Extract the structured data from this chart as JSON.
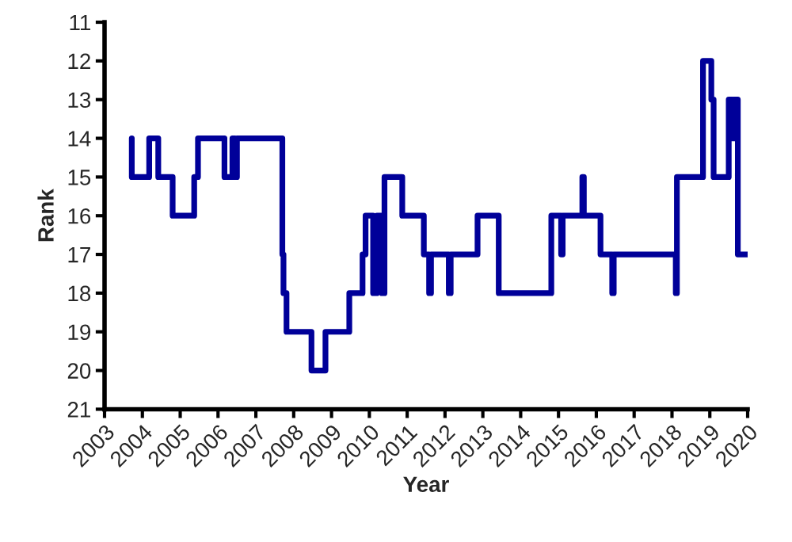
{
  "chart_data": {
    "type": "line",
    "xlabel": "Year",
    "ylabel": "Rank",
    "x": [
      2003.72,
      2003.72,
      2004.18,
      2004.18,
      2004.42,
      2004.42,
      2004.8,
      2004.8,
      2005.37,
      2005.37,
      2005.47,
      2005.47,
      2006.17,
      2006.17,
      2006.38,
      2006.38,
      2006.45,
      2006.45,
      2006.5,
      2006.5,
      2007.7,
      2007.7,
      2007.73,
      2007.73,
      2007.81,
      2007.81,
      2008.47,
      2008.47,
      2008.84,
      2008.84,
      2009.47,
      2009.47,
      2009.82,
      2009.82,
      2009.9,
      2009.9,
      2010.1,
      2010.1,
      2010.2,
      2010.2,
      2010.33,
      2010.33,
      2010.4,
      2010.4,
      2010.87,
      2010.87,
      2011.44,
      2011.44,
      2011.58,
      2011.58,
      2011.63,
      2011.63,
      2012.1,
      2012.1,
      2012.15,
      2012.15,
      2012.86,
      2012.86,
      2013.42,
      2013.42,
      2014.81,
      2014.81,
      2015.07,
      2015.07,
      2015.11,
      2015.11,
      2015.63,
      2015.63,
      2015.67,
      2015.67,
      2016.11,
      2016.11,
      2016.42,
      2016.42,
      2016.46,
      2016.46,
      2018.1,
      2018.1,
      2018.13,
      2018.13,
      2018.82,
      2018.82,
      2019.04,
      2019.04,
      2019.1,
      2019.1,
      2019.5,
      2019.5,
      2019.6,
      2019.6,
      2019.64,
      2019.64,
      2019.74,
      2019.74,
      2020.0
    ],
    "series": [
      {
        "color": "#000099",
        "values": [
          14,
          15,
          15,
          14,
          14,
          15,
          15,
          16,
          16,
          15,
          15,
          14,
          14,
          15,
          15,
          14,
          14,
          15,
          15,
          14,
          14,
          17,
          17,
          18,
          18,
          19,
          19,
          20,
          20,
          19,
          19,
          18,
          18,
          17,
          17,
          16,
          16,
          18,
          18,
          16,
          16,
          18,
          18,
          15,
          15,
          16,
          16,
          17,
          17,
          18,
          18,
          17,
          17,
          18,
          18,
          17,
          17,
          16,
          16,
          18,
          18,
          16,
          16,
          17,
          17,
          16,
          16,
          15,
          15,
          16,
          16,
          17,
          17,
          18,
          18,
          17,
          17,
          18,
          18,
          15,
          15,
          12,
          12,
          13,
          13,
          15,
          15,
          13,
          13,
          14,
          14,
          13,
          13,
          17,
          17
        ]
      }
    ],
    "xlim": [
      2003,
      2020
    ],
    "xticks": [
      2003,
      2004,
      2005,
      2006,
      2007,
      2008,
      2009,
      2010,
      2011,
      2012,
      2013,
      2014,
      2015,
      2016,
      2017,
      2018,
      2019,
      2020
    ],
    "ylim": [
      21,
      11
    ],
    "yticks": [
      11,
      12,
      13,
      14,
      15,
      16,
      17,
      18,
      19,
      20,
      21
    ],
    "marker": "none",
    "line_style": "solid"
  }
}
